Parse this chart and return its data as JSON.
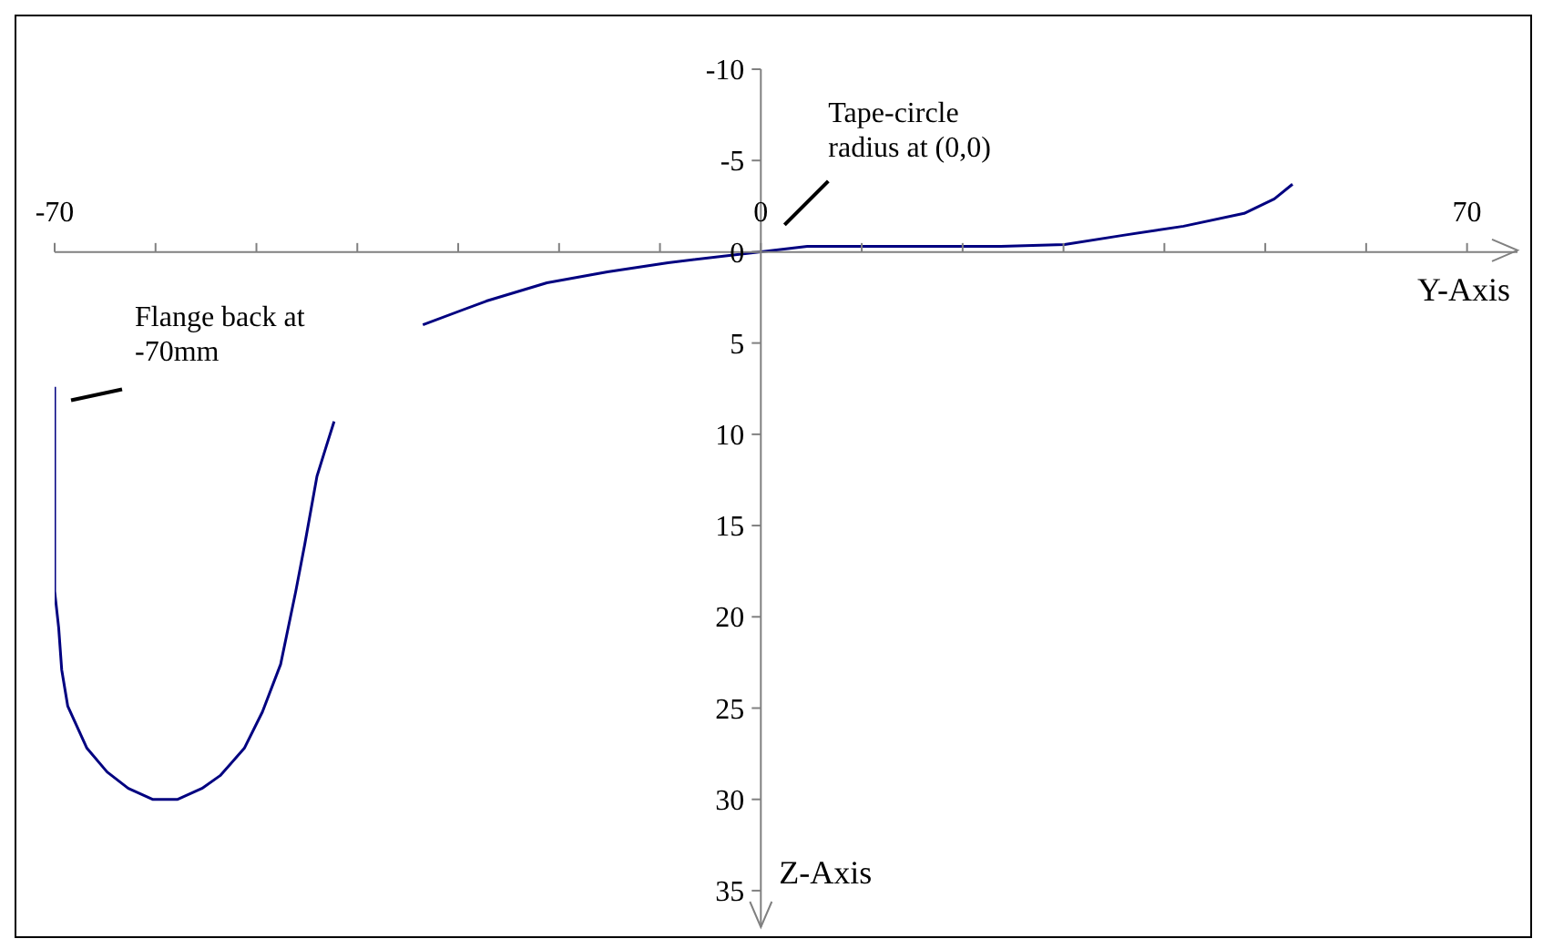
{
  "chart_data": {
    "type": "line",
    "x": [
      -70,
      -70,
      -69.6,
      -69.3,
      -68.7,
      -66.8,
      -64.8,
      -62.7,
      -60.3,
      -57.8,
      -55.4,
      -53.6,
      -51.2,
      -49.4,
      -47.6,
      -46.1,
      -45.2,
      -44.0,
      -43.1,
      -42.3,
      -38,
      -33.5,
      -27.2,
      -21.2,
      -15.2,
      -9.2,
      0,
      4.6,
      23.8,
      30.1,
      35.9,
      41.9,
      47.9,
      50.9,
      52.7
    ],
    "series": [
      {
        "color": "#000080",
        "values": [
          7.4,
          18.6,
          20.6,
          22.9,
          24.9,
          27.2,
          28.5,
          29.4,
          30.0,
          30.0,
          29.4,
          28.7,
          27.2,
          25.2,
          22.6,
          18.6,
          16.0,
          12.3,
          10.7,
          9.3,
          null,
          4.0,
          2.7,
          1.7,
          1.1,
          0.6,
          0,
          -0.3,
          -0.3,
          -0.4,
          -0.9,
          -1.4,
          -2.1,
          -2.9,
          -3.7
        ]
      }
    ],
    "xlim": [
      -70,
      75
    ],
    "ylim": [
      37,
      -10
    ],
    "xticks": [
      -70,
      {
        "value": -60,
        "label": null
      },
      {
        "value": -50,
        "label": null
      },
      {
        "value": -40,
        "label": null
      },
      {
        "value": -30,
        "label": null
      },
      {
        "value": -20,
        "label": null
      },
      {
        "value": -10,
        "label": null
      },
      0,
      {
        "value": 10,
        "label": null
      },
      {
        "value": 20,
        "label": null
      },
      {
        "value": 30,
        "label": null
      },
      {
        "value": 40,
        "label": null
      },
      {
        "value": 50,
        "label": null
      },
      {
        "value": 60,
        "label": null
      },
      70
    ],
    "yticks": [
      -10,
      -5,
      0,
      5,
      10,
      15,
      20,
      25,
      30,
      35
    ],
    "xlabel": "Y-Axis",
    "ylabel": "Z-Axis",
    "annotations": [
      {
        "text": "Flange back at -70mm",
        "x": -70,
        "y": 7.4
      },
      "Tape-circle radius at (0,0)"
    ]
  }
}
